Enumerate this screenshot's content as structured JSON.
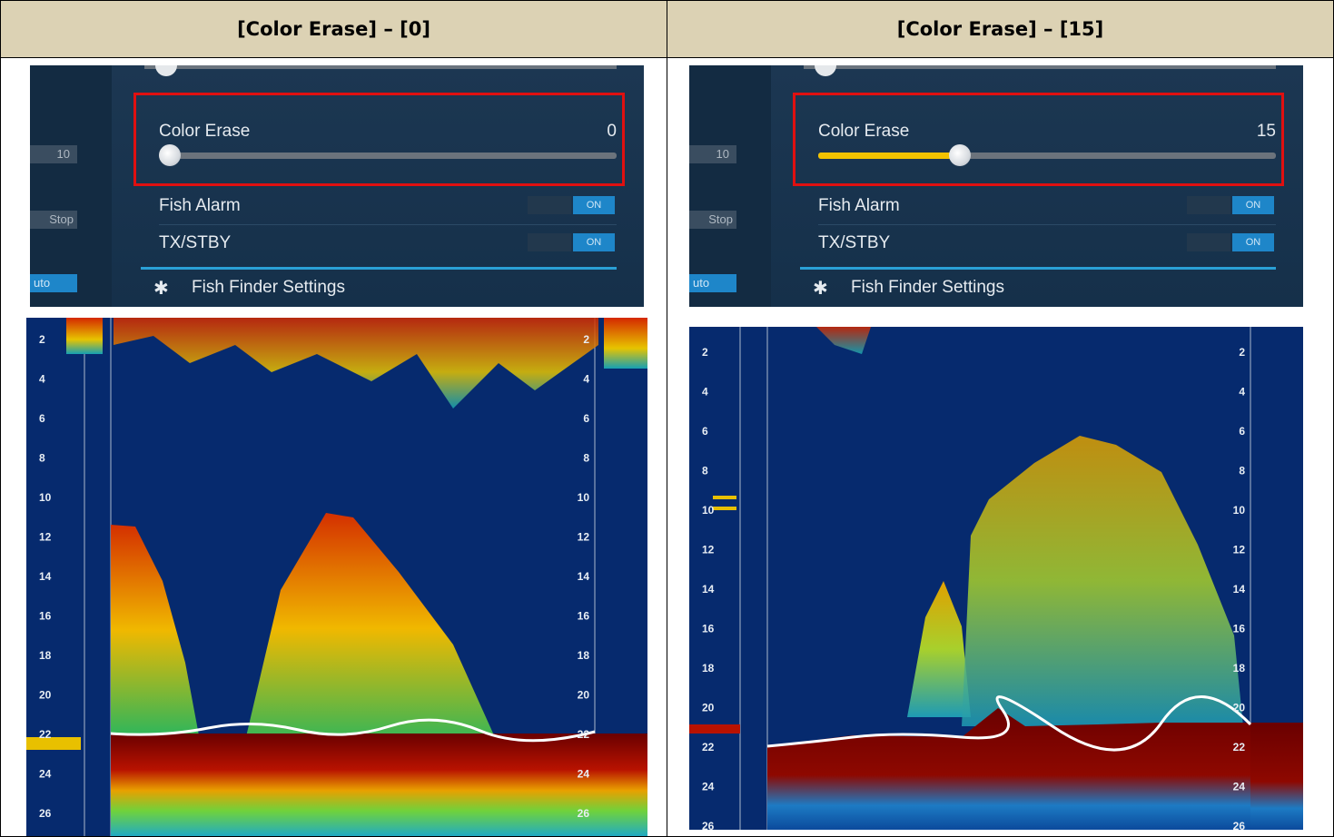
{
  "columns": [
    {
      "header": "[Color Erase] – [0]",
      "panel": {
        "left_values": [
          "10",
          "Stop",
          "uto"
        ],
        "color_erase_label": "Color Erase",
        "color_erase_value": "0",
        "color_erase_level_fraction": 0.0,
        "fish_alarm_label": "Fish Alarm",
        "fish_alarm_state": "ON",
        "tx_stby_label": "TX/STBY",
        "tx_stby_state": "ON",
        "settings_label": "Fish Finder Settings",
        "settings_icon": "gear-icon"
      },
      "depth_ticks": [
        "2",
        "4",
        "6",
        "8",
        "10",
        "12",
        "14",
        "16",
        "18",
        "20",
        "22",
        "24",
        "26"
      ]
    },
    {
      "header": "[Color Erase] – [15]",
      "panel": {
        "left_values": [
          "10",
          "Stop",
          "uto"
        ],
        "color_erase_label": "Color Erase",
        "color_erase_value": "15",
        "color_erase_level_fraction": 0.31,
        "fish_alarm_label": "Fish Alarm",
        "fish_alarm_state": "ON",
        "tx_stby_label": "TX/STBY",
        "tx_stby_state": "ON",
        "settings_label": "Fish Finder Settings",
        "settings_icon": "gear-icon"
      },
      "depth_ticks": [
        "2",
        "4",
        "6",
        "8",
        "10",
        "12",
        "14",
        "16",
        "18",
        "20",
        "22",
        "24",
        "26"
      ]
    }
  ],
  "colors": {
    "highlight_box": "#e01010",
    "slider_fill": "#f2c200",
    "toggle_on": "#1e86c9",
    "echo_background": "#062a6e",
    "header_background": "#dcd2b4"
  }
}
